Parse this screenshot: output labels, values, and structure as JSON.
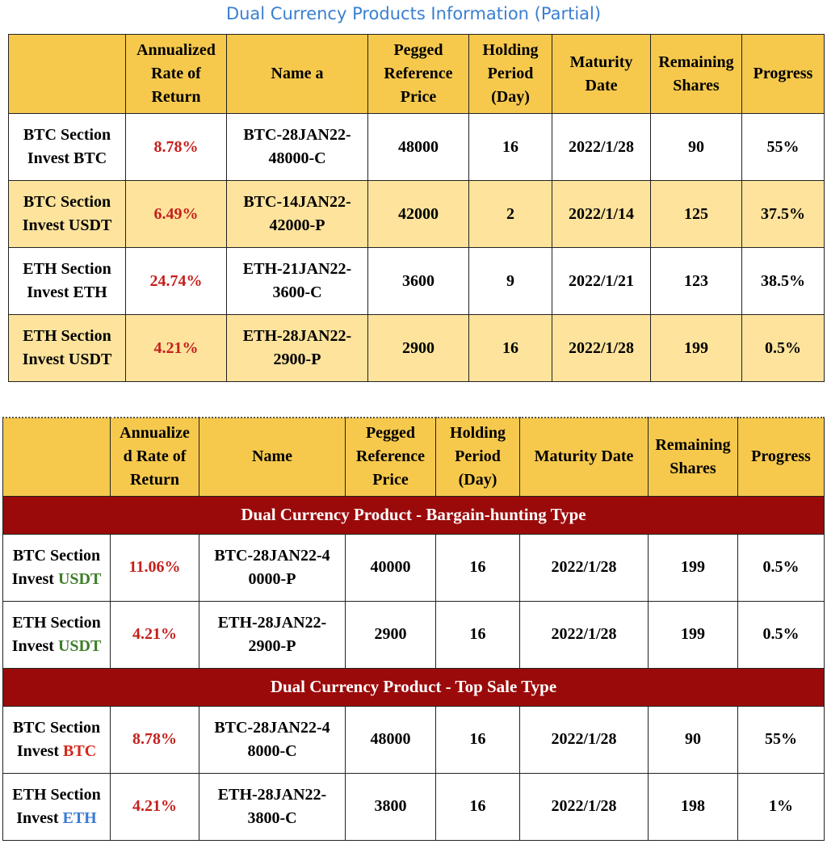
{
  "title": "Dual Currency Products Information (Partial)",
  "colors": {
    "title_blue": "#3a7fd0",
    "header_gold": "#f6c94d",
    "row_light_yellow": "#fde39c",
    "section_dark_red": "#9b0a0a",
    "rate_red": "#c4201d",
    "usdt_green": "#3f7d2b",
    "btc_red": "#d6271c",
    "eth_blue": "#3b7bd4"
  },
  "table1": {
    "headers": {
      "rate_line1": "Annualized",
      "rate_line2": "Rate of",
      "rate_line3": "Return",
      "name": "Name a",
      "price_line1": "Pegged",
      "price_line2": "Reference",
      "price_line3": "Price",
      "hold_line1": "Holding",
      "hold_line2": "Period",
      "hold_line3": "(Day)",
      "date_line1": "Maturity",
      "date_line2": "Date",
      "shares_line1": "Remaining",
      "shares_line2": "Shares",
      "progress": "Progress"
    },
    "rows": [
      {
        "sec_line1": "BTC Section",
        "sec_line2": "Invest BTC",
        "rate": "8.78%",
        "name_line1": "BTC-28JAN22-",
        "name_line2": "48000-C",
        "price": "48000",
        "hold": "16",
        "date": "2022/1/28",
        "shares": "90",
        "progress": "55%"
      },
      {
        "sec_line1": "BTC Section",
        "sec_line2": "Invest USDT",
        "rate": "6.49%",
        "name_line1": "BTC-14JAN22-",
        "name_line2": "42000-P",
        "price": "42000",
        "hold": "2",
        "date": "2022/1/14",
        "shares": "125",
        "progress": "37.5%"
      },
      {
        "sec_line1": "ETH Section",
        "sec_line2": "Invest ETH",
        "rate": "24.74%",
        "name_line1": "ETH-21JAN22-",
        "name_line2": "3600-C",
        "price": "3600",
        "hold": "9",
        "date": "2022/1/21",
        "shares": "123",
        "progress": "38.5%"
      },
      {
        "sec_line1": "ETH Section",
        "sec_line2": "Invest USDT",
        "rate": "4.21%",
        "name_line1": "ETH-28JAN22-",
        "name_line2": "2900-P",
        "price": "2900",
        "hold": "16",
        "date": "2022/1/28",
        "shares": "199",
        "progress": "0.5%"
      }
    ]
  },
  "table2": {
    "headers": {
      "rate_line1": "Annualize",
      "rate_line2": "d Rate of",
      "rate_line3": "Return",
      "name": "Name",
      "price_line1": "Pegged",
      "price_line2": "Reference",
      "price_line3": "Price",
      "hold_line1": "Holding",
      "hold_line2": "Period",
      "hold_line3": "(Day)",
      "date": "Maturity Date",
      "shares_line1": "Remaining",
      "shares_line2": "Shares",
      "progress": "Progress"
    },
    "sections": [
      {
        "title": "Dual Currency Product - Bargain-hunting Type",
        "rows": [
          {
            "sec_line1": "BTC Section",
            "invest": "Invest",
            "currency": "USDT",
            "rate": "11.06%",
            "name_line1": "BTC-28JAN22-4",
            "name_line2": "0000-P",
            "price": "40000",
            "hold": "16",
            "date": "2022/1/28",
            "shares": "199",
            "progress": "0.5%"
          },
          {
            "sec_line1": "ETH Section",
            "invest": "Invest",
            "currency": "USDT",
            "rate": "4.21%",
            "name_line1": "ETH-28JAN22-",
            "name_line2": "2900-P",
            "price": "2900",
            "hold": "16",
            "date": "2022/1/28",
            "shares": "199",
            "progress": "0.5%"
          }
        ]
      },
      {
        "title": "Dual Currency Product - Top Sale Type",
        "rows": [
          {
            "sec_line1": "BTC Section",
            "invest": "Invest",
            "currency": "BTC",
            "rate": "8.78%",
            "name_line1": "BTC-28JAN22-4",
            "name_line2": "8000-C",
            "price": "48000",
            "hold": "16",
            "date": "2022/1/28",
            "shares": "90",
            "progress": "55%"
          },
          {
            "sec_line1": "ETH Section",
            "invest": "Invest",
            "currency": "ETH",
            "rate": "4.21%",
            "name_line1": "ETH-28JAN22-",
            "name_line2": "3800-C",
            "price": "3800",
            "hold": "16",
            "date": "2022/1/28",
            "shares": "198",
            "progress": "1%"
          }
        ]
      }
    ]
  }
}
